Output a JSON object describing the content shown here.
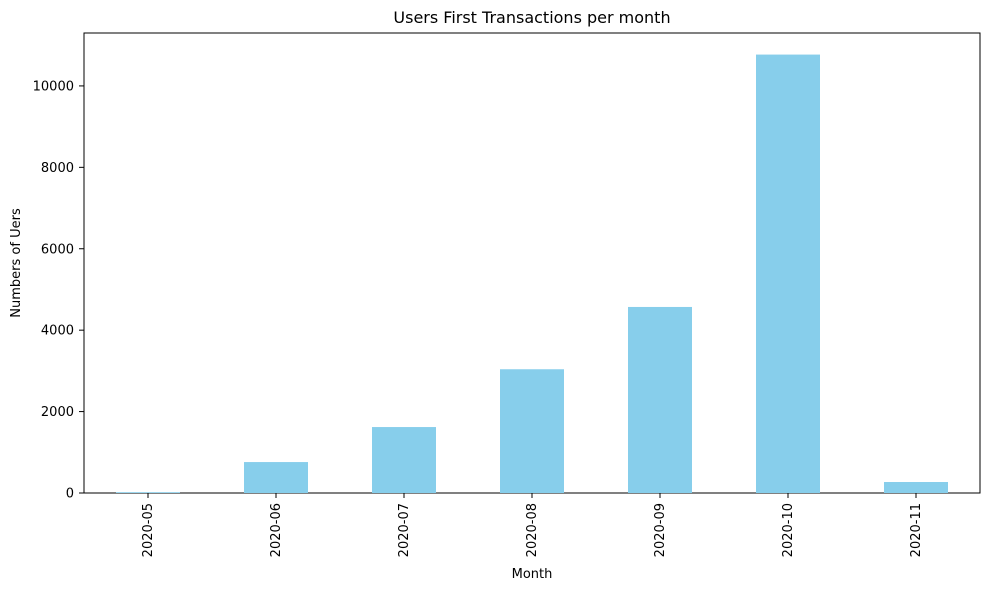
{
  "chart_data": {
    "type": "bar",
    "title": "Users First Transactions per month",
    "xlabel": "Month",
    "ylabel": "Numbers of Uers",
    "categories": [
      "2020-05",
      "2020-06",
      "2020-07",
      "2020-08",
      "2020-09",
      "2020-10",
      "2020-11"
    ],
    "values": [
      20,
      760,
      1620,
      3040,
      4570,
      10770,
      270
    ],
    "ylim": [
      0,
      11300
    ],
    "yticks": [
      0,
      2000,
      4000,
      6000,
      8000,
      10000
    ],
    "ytick_labels": [
      "0",
      "2000",
      "4000",
      "6000",
      "8000",
      "10000"
    ],
    "grid": false,
    "legend": "none",
    "bar_color": "#87CEEB",
    "axis_color": "#000000",
    "background_color": "#FFFFFF"
  }
}
